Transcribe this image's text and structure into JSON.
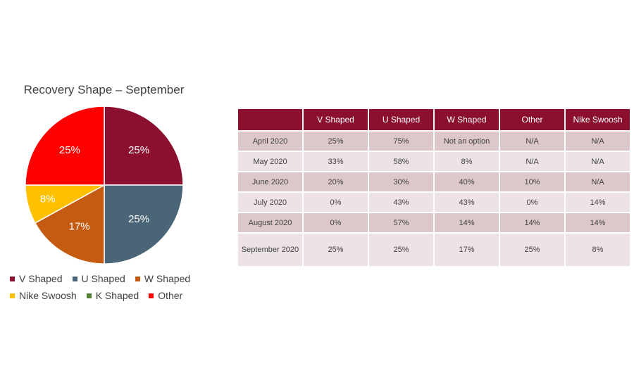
{
  "chart_data": [
    {
      "type": "pie",
      "title": "Recovery Shape – September",
      "slices": [
        {
          "label": "V Shaped",
          "value": 25,
          "display": "25%",
          "color": "#8b1030"
        },
        {
          "label": "U Shaped",
          "value": 25,
          "display": "25%",
          "color": "#4a6478"
        },
        {
          "label": "W Shaped",
          "value": 17,
          "display": "17%",
          "color": "#c55a11"
        },
        {
          "label": "Nike Swoosh",
          "value": 8,
          "display": "8%",
          "color": "#ffc000"
        },
        {
          "label": "Other",
          "value": 25,
          "display": "25%",
          "color": "#ff0000"
        }
      ],
      "legend": [
        {
          "label": "V Shaped",
          "color": "#8b1030"
        },
        {
          "label": "U Shaped",
          "color": "#4a6478"
        },
        {
          "label": "W Shaped",
          "color": "#c55a11"
        },
        {
          "label": "Nike Swoosh",
          "color": "#ffc000"
        },
        {
          "label": "K Shaped",
          "color": "#548235"
        },
        {
          "label": "Other",
          "color": "#ff0000"
        }
      ],
      "legend_position": "bottom"
    },
    {
      "type": "table",
      "columns": [
        "",
        "V Shaped",
        "U Shaped",
        "W Shaped",
        "Other",
        "Nike Swoosh"
      ],
      "rows": [
        [
          "April 2020",
          "25%",
          "75%",
          "Not an option",
          "N/A",
          "N/A"
        ],
        [
          "May 2020",
          "33%",
          "58%",
          "8%",
          "N/A",
          "N/A"
        ],
        [
          "June 2020",
          "20%",
          "30%",
          "40%",
          "10%",
          "N/A"
        ],
        [
          "July 2020",
          "0%",
          "43%",
          "43%",
          "0%",
          "14%"
        ],
        [
          "August 2020",
          "0%",
          "57%",
          "14%",
          "14%",
          "14%"
        ],
        [
          "September 2020",
          "25%",
          "25%",
          "17%",
          "25%",
          "8%"
        ]
      ]
    }
  ]
}
